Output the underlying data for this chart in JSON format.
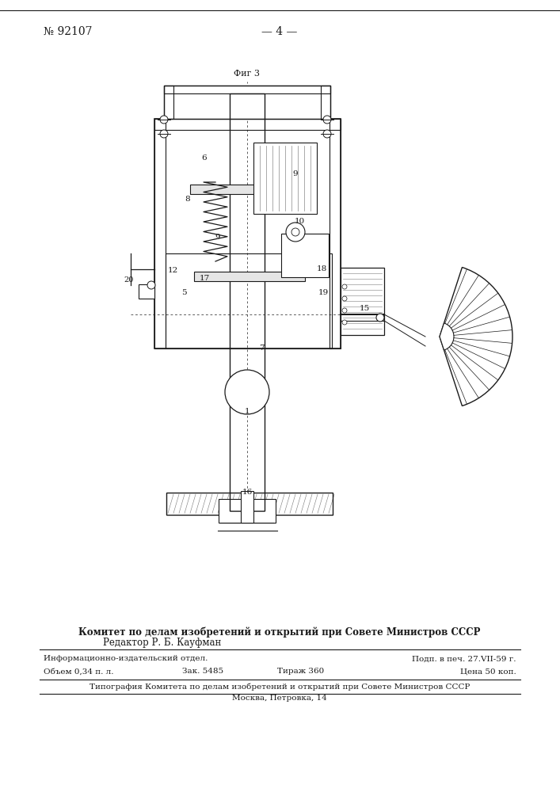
{
  "page_number": "№ 92107",
  "page_num_right": "— 4 —",
  "fig_label": "Фиг 3",
  "bg_color": "#ffffff",
  "line_color": "#1a1a1a",
  "footer_line1": "Комитет по делам изобретений и открытий при Совете Министров СССР",
  "footer_line2": "Редактор Р. Б. Кауфман",
  "footer_col1_row1": "Информационно-издательский отдел.",
  "footer_col1_row2": "Объем 0,34 п. л.",
  "footer_col2_row2": "Зак. 5485",
  "footer_col3_row2": "Тираж 360",
  "footer_col4_row1": "Подп. в печ. 27.VII-59 г.",
  "footer_col4_row2": "Цена 50 коп.",
  "footer_last1": "Типография Комитета по делам изобретений и открытий при Совете Министров СССР",
  "footer_last2": "Москва, Петровка, 14",
  "text_color": "#1a1a1a"
}
